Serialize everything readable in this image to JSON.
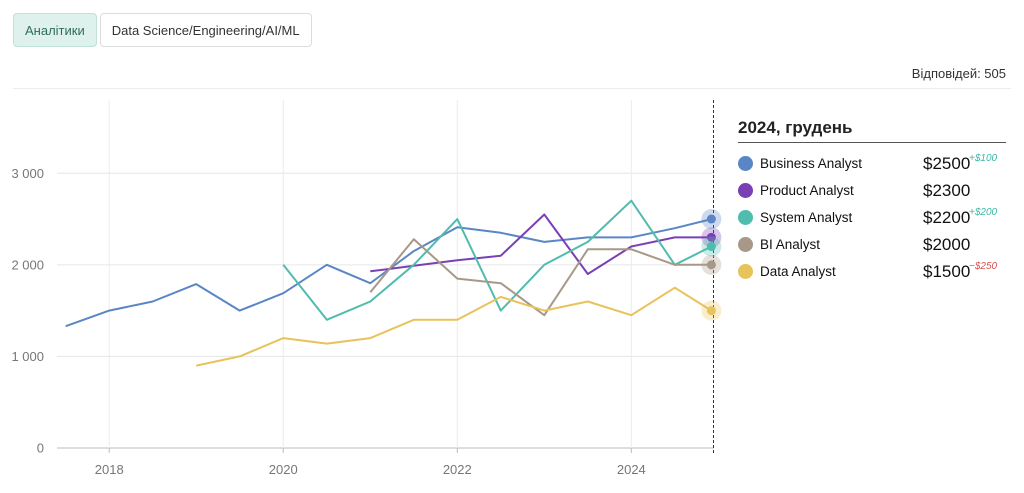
{
  "tabs": [
    {
      "label": "Аналітики",
      "active": true
    },
    {
      "label": "Data Science/Engineering/AI/ML",
      "active": false
    }
  ],
  "responses_label": "Відповідей: 505",
  "chart_data": {
    "type": "line",
    "x_unit": "year",
    "x_ticks": [
      2018,
      2020,
      2022,
      2024
    ],
    "y_ticks": [
      0,
      1000,
      2000,
      3000
    ],
    "y_tick_labels": [
      "0",
      "1 000",
      "2 000",
      "3 000"
    ],
    "ylim": [
      0,
      3800
    ],
    "xlim": [
      2017.4,
      2024.95
    ],
    "grid": true,
    "cursor_label": "2024, грудень",
    "series": [
      {
        "name": "Business Analyst",
        "color": "#5b86c5",
        "latest": "$2500",
        "delta": "+$100",
        "delta_sign": "pos",
        "x": [
          2017.5,
          2018.0,
          2018.5,
          2019.0,
          2019.5,
          2020.0,
          2020.5,
          2021.0,
          2021.5,
          2022.0,
          2022.5,
          2023.0,
          2023.5,
          2024.0,
          2024.5,
          2024.92
        ],
        "y": [
          1330,
          1500,
          1600,
          1790,
          1500,
          1690,
          2000,
          1800,
          2150,
          2410,
          2350,
          2250,
          2300,
          2300,
          2400,
          2500
        ]
      },
      {
        "name": "Product Analyst",
        "color": "#7b3fb5",
        "latest": "$2300",
        "delta": "",
        "delta_sign": "",
        "x": [
          2021.0,
          2021.5,
          2022.0,
          2022.5,
          2023.0,
          2023.5,
          2024.0,
          2024.5,
          2024.92
        ],
        "y": [
          1930,
          1990,
          2050,
          2100,
          2550,
          1900,
          2200,
          2300,
          2300
        ]
      },
      {
        "name": "System Analyst",
        "color": "#4fbcae",
        "latest": "$2200",
        "delta": "+$200",
        "delta_sign": "pos",
        "x": [
          2020.0,
          2020.5,
          2021.0,
          2021.5,
          2022.0,
          2022.5,
          2023.0,
          2023.5,
          2024.0,
          2024.5,
          2024.92
        ],
        "y": [
          2000,
          1400,
          1600,
          2000,
          2500,
          1500,
          2000,
          2250,
          2700,
          2000,
          2200
        ]
      },
      {
        "name": "BI Analyst",
        "color": "#a89888",
        "latest": "$2000",
        "delta": "",
        "delta_sign": "",
        "x": [
          2021.0,
          2021.5,
          2022.0,
          2022.5,
          2023.0,
          2023.5,
          2024.0,
          2024.5,
          2024.92
        ],
        "y": [
          1700,
          2280,
          1850,
          1800,
          1450,
          2170,
          2170,
          2000,
          2000
        ]
      },
      {
        "name": "Data Analyst",
        "color": "#e8c25a",
        "latest": "$1500",
        "delta": "−$250",
        "delta_sign": "neg",
        "x": [
          2019.0,
          2019.5,
          2020.0,
          2020.5,
          2021.0,
          2021.5,
          2022.0,
          2022.5,
          2023.0,
          2023.5,
          2024.0,
          2024.5,
          2024.92
        ],
        "y": [
          900,
          1000,
          1200,
          1140,
          1200,
          1400,
          1400,
          1650,
          1500,
          1600,
          1450,
          1750,
          1500
        ]
      }
    ]
  }
}
